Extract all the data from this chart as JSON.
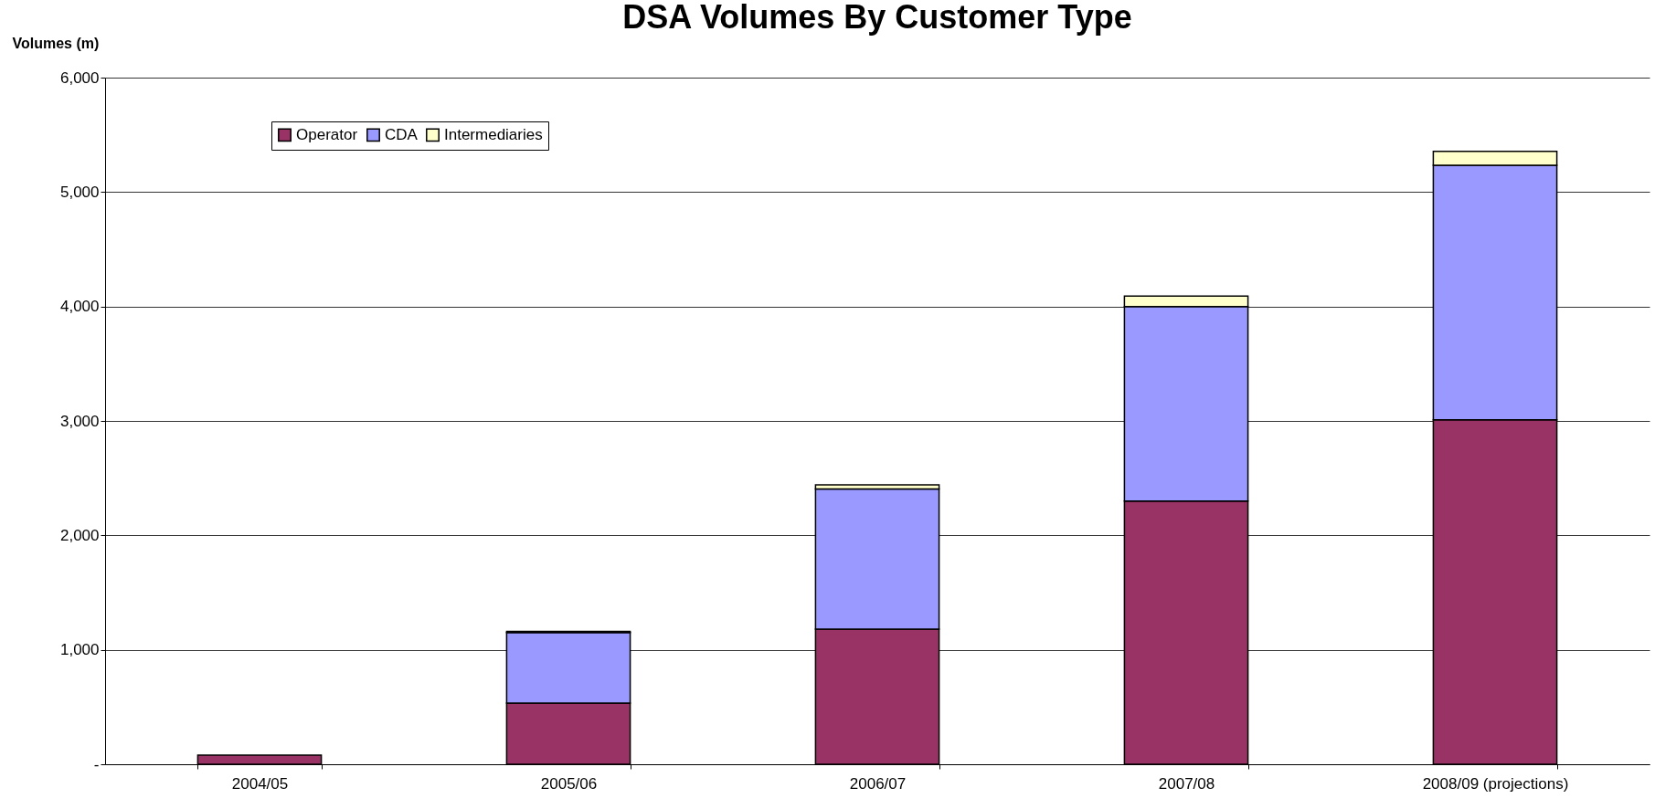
{
  "chart_data": {
    "type": "bar",
    "title": "DSA Volumes By Customer Type",
    "ylabel": "Volumes (m)",
    "categories": [
      "2004/05",
      "2005/06",
      "2006/07",
      "2007/08",
      "2008/09 (projections)"
    ],
    "series": [
      {
        "name": "Operator",
        "color": "#993366",
        "values": [
          80,
          535,
          1180,
          2300,
          3010
        ]
      },
      {
        "name": "CDA",
        "color": "#9999ff",
        "values": [
          null,
          615,
          1225,
          1700,
          2225
        ]
      },
      {
        "name": "Intermediaries",
        "color": "#ffffcc",
        "values": [
          null,
          10,
          37,
          92,
          120
        ]
      }
    ],
    "stacked": true,
    "ylim": [
      0,
      6000
    ],
    "yticks": [
      {
        "value": 0,
        "label": "-"
      },
      {
        "value": 1000,
        "label": "1,000"
      },
      {
        "value": 2000,
        "label": "2,000"
      },
      {
        "value": 3000,
        "label": "3,000"
      },
      {
        "value": 4000,
        "label": "4,000"
      },
      {
        "value": 5000,
        "label": "5,000"
      },
      {
        "value": 6000,
        "label": "6,000"
      }
    ],
    "grid": "y",
    "legend": "top left"
  }
}
